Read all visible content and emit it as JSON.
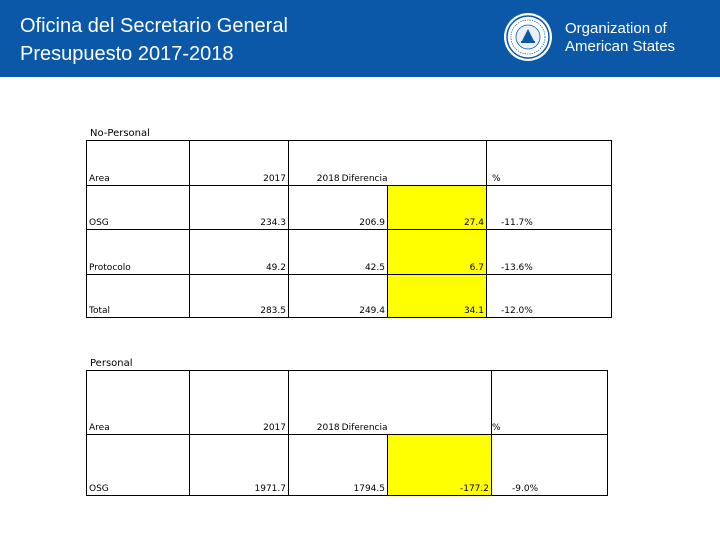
{
  "header": {
    "title_line1": "Oficina del Secretario General",
    "title_line2": "Presupuesto 2017-2018",
    "org_line1": "Organization of",
    "org_line2": "American States",
    "brand_color": "#0b57a8",
    "seal_icon": "oas-seal-icon"
  },
  "no_personal": {
    "caption": "No-Personal",
    "header": {
      "area": "Area",
      "y2017": "2017",
      "y2018": "2018",
      "diff": "Diferencia",
      "pct": "%"
    },
    "rows": [
      {
        "area": "OSG",
        "y2017": "234.3",
        "y2018": "206.9",
        "diff": "27.4",
        "pct": "-11.7%"
      },
      {
        "area": "Protocolo",
        "y2017": "49.2",
        "y2018": "42.5",
        "diff": "6.7",
        "pct": "-13.6%"
      },
      {
        "area": "Total",
        "y2017": "283.5",
        "y2018": "249.4",
        "diff": "34.1",
        "pct": "-12.0%"
      }
    ]
  },
  "personal": {
    "caption": "Personal",
    "header": {
      "area": "Area",
      "y2017": "2017",
      "y2018": "2018",
      "diff": "Diferencia",
      "pct": "%"
    },
    "rows": [
      {
        "area": "OSG",
        "y2017": "1971.7",
        "y2018": "1794.5",
        "diff": "-177.2",
        "pct": "-9.0%"
      }
    ]
  },
  "highlight_color": "#ffff00"
}
